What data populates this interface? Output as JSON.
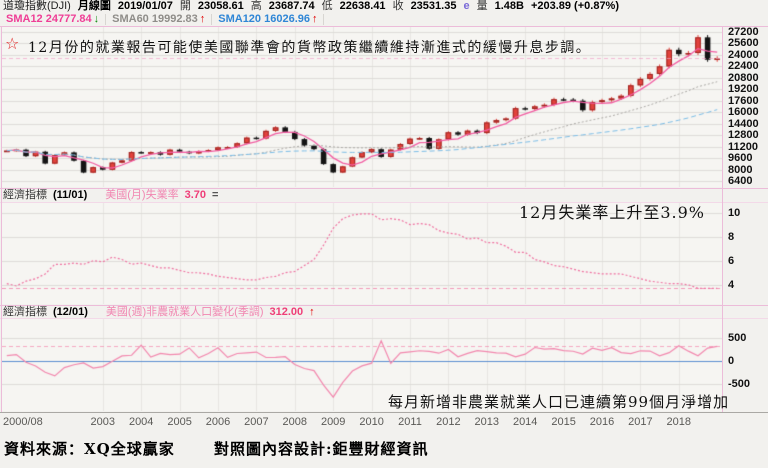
{
  "quote_bar": {
    "symbol": "道瓊指數(DJI)",
    "period": "月線圖",
    "date": "2019/01/07",
    "open_label": "開",
    "open": "23058.61",
    "high_label": "高",
    "high": "23687.74",
    "low_label": "低",
    "low": "22638.41",
    "close_label": "收",
    "close": "23531.35",
    "e_flag": "e",
    "volume_label": "量",
    "volume": "1.48B",
    "change": "+203.89 (+0.87%)"
  },
  "sma_bar": {
    "sma12_label": "SMA12 24777.84",
    "sma12_arrow": "↓",
    "sma60_label": "SMA60 19992.83",
    "sma60_arrow": "↑",
    "sma120_label": "SMA120 16026.96",
    "sma120_arrow": "↑"
  },
  "annotations": {
    "star": "☆",
    "main": "12月份的就業報告可能使美國聯準會的貨幣政策繼續維持漸進式的緩慢升息步調。",
    "unemployment": "12月失業率上升至3.9%",
    "payroll": "每月新增非農業就業人口已連續第99個月淨增加"
  },
  "panel2_header": {
    "title": "經濟指標",
    "date": "(11/01)",
    "indicator": "美國(月)失業率",
    "value": "3.70",
    "direction": "="
  },
  "panel3_header": {
    "title": "經濟指標",
    "date": "(12/01)",
    "indicator": "美國(週)非農就業人口變化(季調)",
    "value": "312.00",
    "direction": "↑"
  },
  "footer": {
    "source": "資料來源：XQ全球贏家",
    "design": "對照圖內容設計:鉅豐財經資訊"
  },
  "colors": {
    "accent_pink": "#ef3e96",
    "up_candle": "#e2423c",
    "down_candle": "#141414",
    "sma12": "#f25ca2",
    "sma60": "#a9a7a3",
    "sma120": "#79bce6",
    "indicator_line": "#ef6f9f",
    "zero_line": "#5b8fd0",
    "grid": "#dddcd8",
    "panel_border": "#ecbcd9"
  },
  "xaxis": {
    "labels": [
      {
        "t": "2000/08",
        "i": 0
      },
      {
        "t": "2003",
        "i": 10
      },
      {
        "t": "2004",
        "i": 14
      },
      {
        "t": "2005",
        "i": 18
      },
      {
        "t": "2006",
        "i": 22
      },
      {
        "t": "2007",
        "i": 26
      },
      {
        "t": "2008",
        "i": 30
      },
      {
        "t": "2009",
        "i": 34
      },
      {
        "t": "2010",
        "i": 38
      },
      {
        "t": "2011",
        "i": 42
      },
      {
        "t": "2012",
        "i": 46
      },
      {
        "t": "2013",
        "i": 50
      },
      {
        "t": "2014",
        "i": 54
      },
      {
        "t": "2015",
        "i": 58
      },
      {
        "t": "2016",
        "i": 62
      },
      {
        "t": "2017",
        "i": 66
      },
      {
        "t": "2018",
        "i": 70
      }
    ]
  },
  "chart_data": [
    {
      "type": "candlestick",
      "title": "道瓊指數(DJI) 月線圖 2000/08-2019/01 (季取樣)",
      "ylim": [
        5580,
        27900
      ],
      "yticks": [
        27200,
        25600,
        24000,
        22400,
        20800,
        19200,
        17600,
        16000,
        14400,
        12800,
        11200,
        9600,
        8000,
        6400
      ],
      "up_color": "#e2423c",
      "up_border": "#9c2420",
      "down_color": "#141414",
      "last_value": 23531.35,
      "last_line_color": "#f0a0c8",
      "close": [
        10650,
        10787,
        9879,
        10502,
        8848,
        10021,
        10404,
        9243,
        7592,
        8342,
        7992,
        8985,
        9275,
        10454,
        10358,
        10435,
        10080,
        10783,
        10504,
        10275,
        10569,
        10718,
        11109,
        11150,
        11679,
        12463,
        12354,
        13409,
        13896,
        13265,
        12263,
        11350,
        10851,
        8776,
        7609,
        8447,
        9712,
        10428,
        10857,
        9774,
        10788,
        11578,
        12320,
        12414,
        10913,
        12218,
        13212,
        12880,
        13437,
        13104,
        14579,
        14910,
        15130,
        16577,
        16458,
        16827,
        17043,
        17823,
        17776,
        17620,
        16285,
        17425,
        17685,
        17930,
        18308,
        19763,
        20663,
        21350,
        22405,
        24719,
        24103,
        24271,
        26458,
        23327,
        23531
      ],
      "overlays": [
        {
          "name": "SMA12",
          "window": 4,
          "color": "#f25ca2",
          "width": 1.3
        },
        {
          "name": "SMA60",
          "window": 20,
          "color": "#a9a7a3",
          "dash": [
            2,
            2
          ]
        },
        {
          "name": "SMA120",
          "window": 40,
          "color": "#79bce6",
          "dash": [
            5,
            3
          ]
        }
      ]
    },
    {
      "type": "line",
      "title": "美國(月)失業率 (%)",
      "ylim": [
        2.4,
        10.8
      ],
      "yticks": [
        10,
        8,
        6,
        4
      ],
      "color": "#ef6f9f",
      "dash": [
        2,
        2
      ],
      "last_value": 3.7,
      "last_line_color": "#ef6f9f",
      "values": [
        4.1,
        3.9,
        4.3,
        4.5,
        4.9,
        5.7,
        5.7,
        5.8,
        5.7,
        6.0,
        5.9,
        6.3,
        6.1,
        5.7,
        5.8,
        5.6,
        5.4,
        5.4,
        5.2,
        5.0,
        5.0,
        4.9,
        4.7,
        4.6,
        4.5,
        4.4,
        4.4,
        4.6,
        4.7,
        5.0,
        5.1,
        5.6,
        6.1,
        7.3,
        8.7,
        9.5,
        9.8,
        9.9,
        9.9,
        9.4,
        9.5,
        9.4,
        9.0,
        9.1,
        9.0,
        8.5,
        8.3,
        8.2,
        7.8,
        7.9,
        7.5,
        7.5,
        7.2,
        6.7,
        6.7,
        6.1,
        5.9,
        5.6,
        5.5,
        5.3,
        5.1,
        5.0,
        4.9,
        4.9,
        4.9,
        4.7,
        4.5,
        4.3,
        4.2,
        4.1,
        4.1,
        4.0,
        3.7,
        3.7,
        3.7
      ]
    },
    {
      "type": "line",
      "title": "美國(週)非農就業人口變化(季調) (千人)",
      "ylim": [
        -1080,
        900
      ],
      "yticks": [
        500,
        0,
        -500
      ],
      "zero_value": 0,
      "zero_color": "#5b8fd0",
      "color": "#f286ad",
      "last_value": 312,
      "last_line_color": "#f286ad",
      "values": [
        110,
        135,
        -30,
        -110,
        -245,
        -325,
        -145,
        -85,
        -45,
        -156,
        -125,
        -10,
        105,
        120,
        338,
        81,
        160,
        132,
        142,
        278,
        63,
        158,
        282,
        75,
        158,
        171,
        188,
        71,
        73,
        88,
        -80,
        -165,
        -210,
        -524,
        -783,
        -463,
        -219,
        -109,
        -50,
        432,
        -57,
        171,
        192,
        217,
        202,
        164,
        243,
        87,
        161,
        219,
        197,
        172,
        164,
        84,
        144,
        286,
        250,
        261,
        221,
        206,
        145,
        271,
        225,
        281,
        176,
        155,
        216,
        210,
        106,
        175,
        326,
        208,
        108,
        275,
        312
      ]
    }
  ]
}
